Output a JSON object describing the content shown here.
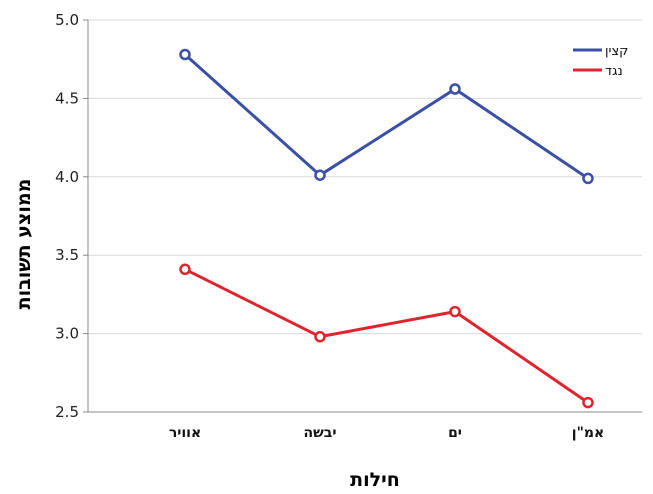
{
  "chart_data": {
    "type": "line",
    "categories": [
      "אוויר",
      "יבשה",
      "ים",
      "אמ\"ן"
    ],
    "series": [
      {
        "name": "קצין",
        "values": [
          4.78,
          4.01,
          4.56,
          3.99
        ],
        "color": "#3a4fa6"
      },
      {
        "name": "נגד",
        "values": [
          3.41,
          2.98,
          3.14,
          2.56
        ],
        "color": "#e0242e"
      }
    ],
    "xlabel": "חילות",
    "ylabel": "ממוצע תשובות",
    "ylim": [
      2.5,
      5.0
    ],
    "yticks": [
      "2.5",
      "3.0",
      "3.5",
      "4.0",
      "4.5",
      "5.0"
    ],
    "grid": true,
    "legend_position": "top-right"
  }
}
